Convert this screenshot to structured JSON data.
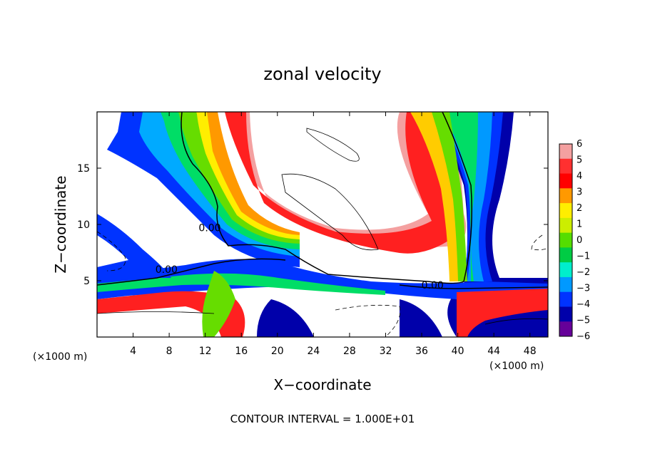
{
  "chart_data": {
    "type": "heatmap",
    "title": "zonal velocity",
    "xlabel": "X−coordinate",
    "ylabel": "Z−coordinate",
    "x_unit_label_left": "(×1000 m)",
    "x_unit_label_right": "(×1000 m)",
    "xlim": [
      0,
      50
    ],
    "ylim": [
      0,
      20
    ],
    "x_ticks": [
      4,
      8,
      12,
      16,
      20,
      24,
      28,
      32,
      36,
      40,
      44,
      48
    ],
    "y_ticks": [
      5,
      10,
      15
    ],
    "colorbar": {
      "levels": [
        6,
        5,
        4,
        3,
        2,
        1,
        0,
        -1,
        -2,
        -3,
        -4,
        -5,
        -6
      ],
      "labels": [
        "6",
        "5",
        "4",
        "3",
        "2",
        "1",
        "0",
        "−1",
        "−2",
        "−3",
        "−4",
        "−5",
        "−6"
      ],
      "colors": [
        "#f4a0a0",
        "#ff3030",
        "#ff0000",
        "#ff9900",
        "#ffee00",
        "#ccee00",
        "#55dd00",
        "#00cc44",
        "#00eecc",
        "#0099ff",
        "#0033ff",
        "#0000aa",
        "#660099"
      ]
    },
    "contour_labels": [
      {
        "text": "0.00",
        "x": 12.5,
        "y": 9.4
      },
      {
        "text": "0.00",
        "x": 7.7,
        "y": 5.7
      },
      {
        "text": "0.00",
        "x": 37.2,
        "y": 4.3
      }
    ],
    "contour_interval_text": "CONTOUR INTERVAL = 1.000E+01"
  }
}
